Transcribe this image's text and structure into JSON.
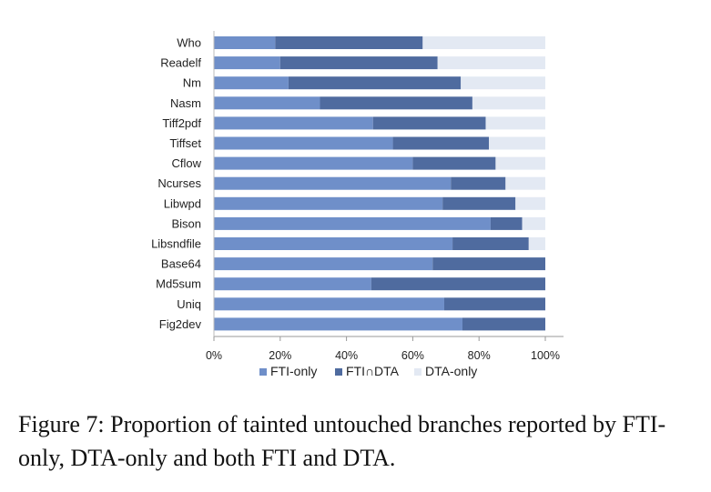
{
  "chart_data": {
    "type": "bar",
    "orientation": "horizontal",
    "stacked": true,
    "categories": [
      "Who",
      "Readelf",
      "Nm",
      "Nasm",
      "Tiff2pdf",
      "Tiffset",
      "Cflow",
      "Ncurses",
      "Libwpd",
      "Bison",
      "Libsndfile",
      "Base64",
      "Md5sum",
      "Uniq",
      "Fig2dev"
    ],
    "series": [
      {
        "name": "FTI-only",
        "color": "#6f8fc9",
        "values": [
          18.5,
          20,
          22.5,
          32,
          48,
          54,
          60,
          71.5,
          69,
          83.5,
          72,
          66,
          47.5,
          69.5,
          75
        ]
      },
      {
        "name": "FTI∩DTA",
        "color": "#4f6b9f",
        "values": [
          44.5,
          47.5,
          52,
          46,
          34,
          29,
          25,
          16.5,
          22,
          9.5,
          23,
          34,
          52.5,
          30.5,
          25
        ]
      },
      {
        "name": "DTA-only",
        "color": "#e3e9f3",
        "values": [
          37,
          32.5,
          25.5,
          22,
          18,
          17,
          15,
          12,
          9,
          7,
          5,
          0,
          0,
          0,
          0
        ]
      }
    ],
    "xticks": [
      "0%",
      "20%",
      "40%",
      "60%",
      "80%",
      "100%"
    ],
    "xlim": [
      0,
      100
    ],
    "grid": false,
    "legend_position": "bottom"
  },
  "caption": "Figure 7: Proportion of tainted untouched branches reported by FTI-only, DTA-only and both FTI and DTA."
}
